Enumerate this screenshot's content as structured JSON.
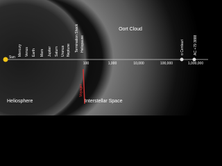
{
  "planets": [
    "Sun",
    "Mercury",
    "Venus",
    "Earth",
    "Mars",
    "Jupiter",
    "Saturn",
    "Uranus",
    "Neptune"
  ],
  "boundaries": [
    "Termination Shock",
    "Heliopause"
  ],
  "scale": [
    "100",
    "1,000",
    "10,000",
    "100,000",
    "1,000,000"
  ],
  "region_labels": {
    "oort": "Oort Cloud",
    "heliosphere": "Heliosphere",
    "interstellar": "Interstellar Space"
  },
  "stars": [
    "α Centauri",
    "AC +79 3888"
  ],
  "probe": "Voyager"
}
